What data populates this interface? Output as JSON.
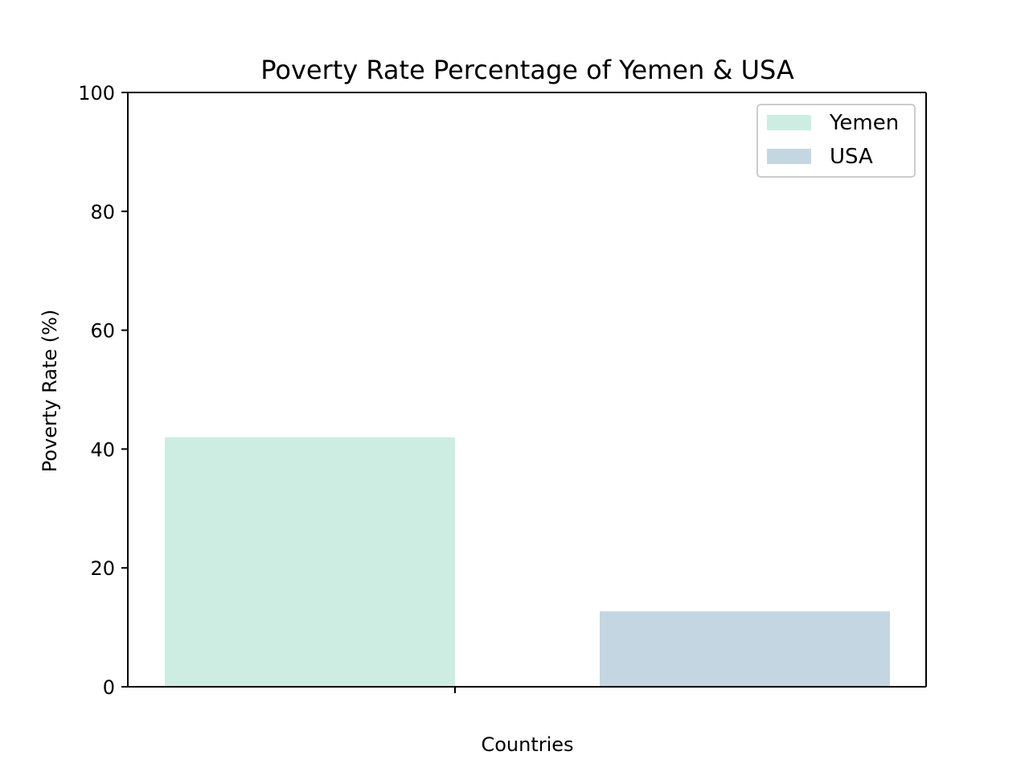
{
  "chart_data": {
    "type": "bar",
    "title": "Poverty Rate Percentage of Yemen & USA",
    "xlabel": "Countries",
    "ylabel": "Poverty Rate (%)",
    "ylim": [
      0,
      100
    ],
    "yticks": [
      0,
      20,
      40,
      60,
      80,
      100
    ],
    "ytick_labels": [
      "0",
      "20",
      "40",
      "60",
      "80",
      "100"
    ],
    "grid": false,
    "legend_position": "top-right",
    "series": [
      {
        "name": "Yemen",
        "value": 42,
        "color": "#cdede2"
      },
      {
        "name": "USA",
        "value": 12.7,
        "color": "#c5d6e3"
      }
    ]
  }
}
